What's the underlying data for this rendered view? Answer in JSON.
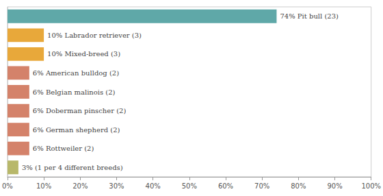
{
  "chart_data": {
    "type": "bar",
    "orientation": "horizontal",
    "categories": [
      "3% (1 per 4 different breeds)",
      "6% Rottweiler (2)",
      "6% German shepherd (2)",
      "6% Doberman pinscher (2)",
      "6% Belgian malinois (2)",
      "6% American bulldog (2)",
      "10% Mixed-breed (3)",
      "10% Labrador retriever (3)",
      "74% Pit bull (23)"
    ],
    "values": [
      3,
      6,
      6,
      6,
      6,
      6,
      10,
      10,
      74
    ],
    "colors": [
      "#b8b86a",
      "#d4826a",
      "#d4826a",
      "#d4826a",
      "#d4826a",
      "#d4826a",
      "#e8a83a",
      "#e8a83a",
      "#5fa8a8"
    ],
    "xlim": [
      0,
      100
    ],
    "xticks": [
      {
        "value": 0,
        "label": "0%"
      },
      {
        "value": 10,
        "label": "10%"
      },
      {
        "value": 20,
        "label": "20%"
      },
      {
        "value": 30,
        "label": "30%"
      },
      {
        "value": 40,
        "label": "40%"
      },
      {
        "value": 50,
        "label": "50%"
      },
      {
        "value": 60,
        "label": "60%"
      },
      {
        "value": 70,
        "label": "70%"
      },
      {
        "value": 80,
        "label": "80%"
      },
      {
        "value": 90,
        "label": "90%"
      },
      {
        "value": 100,
        "label": "100%"
      }
    ],
    "grid": false,
    "tick_labels": "x"
  }
}
